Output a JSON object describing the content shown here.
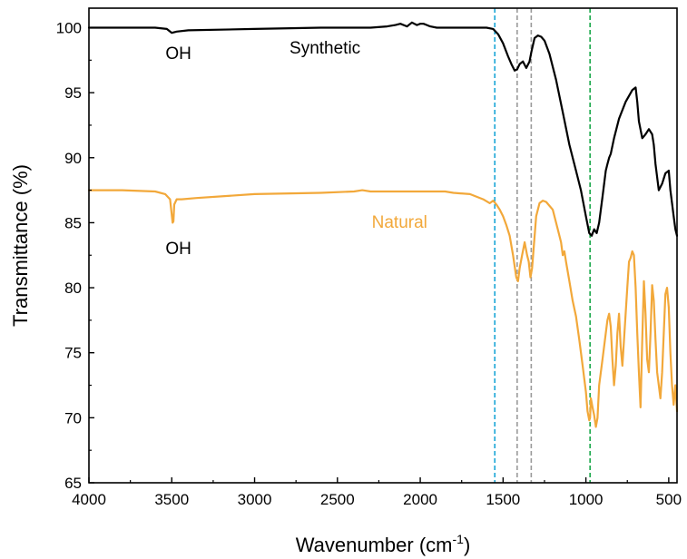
{
  "chart_data": {
    "type": "line",
    "xlabel": "Wavenumber (cm",
    "xlabel_sup": "-1",
    "xlabel_close": ")",
    "ylabel": "Transmittance (%)",
    "xlim": [
      4000,
      450
    ],
    "ylim": [
      65,
      101.5
    ],
    "x_reversed": true,
    "x_ticks": [
      4000,
      3500,
      3000,
      2500,
      2000,
      1500,
      1000,
      500
    ],
    "y_ticks": [
      65,
      70,
      75,
      80,
      85,
      90,
      95,
      100
    ],
    "grid": false,
    "colors": {
      "synthetic": "#000000",
      "natural": "#f2a83a",
      "cyan_line": "#1aa6d6",
      "grey_line": "#9a9a9a",
      "green_line": "#1aa84a"
    },
    "reference_lines": [
      {
        "x": 1550,
        "color": "cyan"
      },
      {
        "x": 1415,
        "color": "grey"
      },
      {
        "x": 1330,
        "color": "grey"
      },
      {
        "x": 975,
        "color": "green"
      }
    ],
    "series": [
      {
        "name": "Synthetic",
        "x": [
          4000,
          3800,
          3600,
          3530,
          3500,
          3470,
          3400,
          3000,
          2600,
          2300,
          2200,
          2150,
          2120,
          2080,
          2050,
          2020,
          2000,
          1980,
          1960,
          1940,
          1900,
          1800,
          1600,
          1560,
          1530,
          1500,
          1470,
          1450,
          1430,
          1415,
          1400,
          1380,
          1360,
          1340,
          1330,
          1310,
          1290,
          1270,
          1250,
          1220,
          1180,
          1140,
          1100,
          1060,
          1030,
          1000,
          980,
          965,
          950,
          935,
          920,
          900,
          880,
          870,
          860,
          850,
          830,
          800,
          760,
          720,
          700,
          690,
          680,
          660,
          640,
          620,
          600,
          590,
          580,
          560,
          540,
          520,
          500,
          490,
          480,
          470,
          460,
          450
        ],
        "values": [
          100,
          100,
          100,
          99.9,
          99.6,
          99.7,
          99.8,
          99.9,
          100,
          100,
          100.1,
          100.2,
          100.3,
          100.1,
          100.4,
          100.2,
          100.3,
          100.3,
          100.2,
          100.1,
          100,
          100,
          100,
          99.9,
          99.5,
          98.8,
          97.8,
          97.2,
          96.7,
          96.8,
          97.2,
          97.4,
          96.9,
          97.4,
          98.1,
          99.2,
          99.4,
          99.3,
          99.0,
          98.0,
          96.0,
          93.5,
          91.0,
          89.0,
          87.5,
          85.5,
          84.2,
          84.0,
          84.5,
          84.2,
          85.0,
          87.0,
          89.0,
          89.5,
          90.0,
          90.3,
          91.5,
          93.0,
          94.3,
          95.2,
          95.4,
          94.3,
          92.8,
          91.5,
          91.8,
          92.2,
          91.8,
          91.0,
          89.5,
          87.5,
          88.0,
          88.8,
          89.0,
          87.5,
          86.5,
          85.5,
          84.5,
          84.0
        ]
      },
      {
        "name": "Natural",
        "x": [
          4000,
          3800,
          3600,
          3540,
          3510,
          3495,
          3490,
          3485,
          3470,
          3440,
          3350,
          3000,
          2600,
          2400,
          2350,
          2300,
          2000,
          1850,
          1800,
          1700,
          1620,
          1580,
          1560,
          1540,
          1520,
          1500,
          1480,
          1460,
          1440,
          1420,
          1410,
          1400,
          1385,
          1370,
          1355,
          1345,
          1335,
          1325,
          1300,
          1280,
          1260,
          1240,
          1200,
          1170,
          1150,
          1140,
          1130,
          1120,
          1100,
          1080,
          1060,
          1040,
          1020,
          1000,
          990,
          980,
          975,
          970,
          960,
          950,
          940,
          930,
          920,
          900,
          880,
          870,
          860,
          850,
          840,
          830,
          820,
          810,
          800,
          790,
          780,
          770,
          760,
          750,
          740,
          730,
          720,
          710,
          700,
          690,
          680,
          670,
          660,
          650,
          640,
          630,
          620,
          610,
          600,
          590,
          580,
          570,
          560,
          550,
          540,
          530,
          520,
          510,
          500,
          490,
          480,
          470,
          460,
          450
        ],
        "values": [
          87.5,
          87.5,
          87.4,
          87.2,
          86.8,
          85.0,
          85.1,
          86.4,
          86.8,
          86.8,
          86.9,
          87.2,
          87.3,
          87.4,
          87.5,
          87.4,
          87.4,
          87.4,
          87.3,
          87.2,
          86.8,
          86.5,
          86.7,
          86.4,
          86.0,
          85.5,
          84.8,
          84.0,
          82.5,
          80.8,
          80.5,
          81.5,
          82.5,
          83.5,
          82.5,
          82.0,
          80.8,
          81.5,
          85.5,
          86.5,
          86.7,
          86.6,
          86.0,
          84.5,
          83.5,
          82.5,
          82.8,
          82.0,
          80.5,
          79.0,
          77.8,
          76.0,
          74.0,
          72.0,
          70.5,
          69.8,
          70.0,
          71.5,
          70.8,
          70.2,
          69.3,
          70.0,
          72.5,
          74.5,
          76.5,
          77.5,
          78.0,
          77.0,
          74.5,
          72.5,
          74.0,
          76.5,
          78.0,
          75.5,
          74.0,
          76.0,
          78.0,
          80.0,
          82.0,
          82.3,
          82.8,
          82.5,
          80.0,
          76.5,
          73.5,
          70.8,
          76.0,
          80.5,
          78.0,
          74.5,
          73.5,
          76.5,
          80.2,
          79.0,
          76.0,
          73.5,
          72.5,
          71.5,
          73.5,
          76.5,
          79.5,
          80.0,
          78.5,
          75.0,
          72.5,
          71.0,
          72.5,
          70.5
        ]
      }
    ],
    "annotations": [
      {
        "text": "OH",
        "x": 3460,
        "y": 97.6,
        "series": "synthetic"
      },
      {
        "text": "Synthetic",
        "x": 2575,
        "y": 98.0,
        "series": "synthetic"
      },
      {
        "text": "Natural",
        "x": 2125,
        "y": 84.6,
        "series": "natural"
      },
      {
        "text": "OH",
        "x": 3460,
        "y": 82.6,
        "series": "natural"
      }
    ]
  }
}
